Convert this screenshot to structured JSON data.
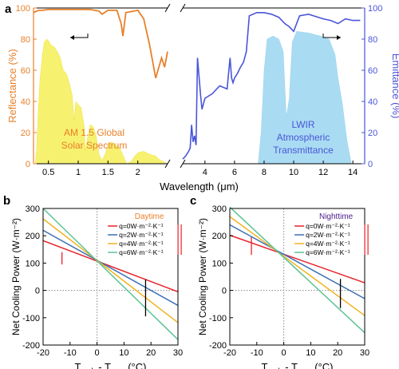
{
  "figure": {
    "panel_labels": [
      "a",
      "b",
      "c"
    ]
  },
  "chart_data": [
    {
      "panel": "a",
      "type": "area",
      "xlabel": "Wavelength (μm)",
      "ylabel_left": "Reflectance (%)",
      "ylabel_right": "Emittance (%)",
      "ylim_left": [
        0,
        100
      ],
      "ylim_right": [
        0,
        100
      ],
      "x_ticks_left": [
        "0.5",
        "1",
        "1.5",
        "2"
      ],
      "x_ticks_right": [
        "4",
        "6",
        "8",
        "10",
        "12",
        "14"
      ],
      "y_ticks": [
        "0",
        "20",
        "40",
        "60",
        "80",
        "100"
      ],
      "annotations": {
        "solar": [
          "AM 1.5 Global",
          "Solar Spectrum"
        ],
        "lwir": [
          "LWIR",
          "Atmospheric",
          "Transmittance"
        ]
      },
      "colors": {
        "reflectance": "#e8802a",
        "emittance": "#4a55d8",
        "solar": "#f7f170",
        "lwir": "#a9dcf3",
        "left_axis": "#e8802a",
        "right_axis": "#4a55d8"
      },
      "series": [
        {
          "role": "reflectance",
          "x": [
            0.25,
            0.3,
            0.35,
            0.4,
            0.5,
            0.6,
            0.8,
            1.0,
            1.2,
            1.35,
            1.4,
            1.5,
            1.65,
            1.72,
            1.75,
            1.8,
            2.0,
            2.1,
            2.2,
            2.3,
            2.4,
            2.45,
            2.5
          ],
          "values": [
            97,
            98,
            98.5,
            98.5,
            99,
            99,
            99,
            99,
            99,
            98,
            96,
            98.5,
            98.5,
            90,
            82,
            97,
            98.5,
            93,
            76,
            55,
            68,
            62,
            72
          ]
        },
        {
          "role": "emittance",
          "x": [
            2.5,
            2.7,
            2.9,
            3.0,
            3.1,
            3.2,
            3.3,
            3.4,
            3.5,
            3.7,
            3.8,
            4.0,
            4.5,
            5.0,
            5.5,
            5.7,
            5.8,
            5.9,
            6.0,
            6.2,
            6.4,
            6.6,
            6.8,
            7.0,
            7.5,
            8.0,
            8.5,
            9.0,
            9.4,
            9.7,
            10.0,
            10.4,
            11.0,
            12.0,
            12.5,
            13.0,
            13.5,
            14.0,
            14.5
          ],
          "values": [
            3,
            5,
            8,
            10,
            25,
            14,
            18,
            12,
            68,
            45,
            35,
            42,
            45,
            50,
            48,
            68,
            55,
            52,
            55,
            58,
            62,
            65,
            72,
            95,
            97,
            97,
            96,
            94,
            90,
            88,
            85,
            95,
            96,
            93,
            92,
            90,
            93,
            92,
            92
          ]
        }
      ]
    },
    {
      "panel": "b",
      "type": "line",
      "xlabel": "T<sub>amb</sub> - T<sub>sam</sub> (°C)",
      "ylabel": "Net Cooling Power (W·m⁻²)",
      "title": "Daytime",
      "title_color": "#e8802a",
      "xlim": [
        -20,
        30
      ],
      "ylim": [
        -200,
        300
      ],
      "x_ticks": [
        "-20",
        "-10",
        "0",
        "10",
        "20",
        "30"
      ],
      "y_ticks": [
        "-200",
        "-100",
        "0",
        "100",
        "200",
        "300"
      ],
      "series": [
        {
          "name": "q=0W·m⁻²·K⁻¹",
          "color": "#e8232b",
          "x": [
            -20,
            30
          ],
          "values": [
            182,
            -5
          ]
        },
        {
          "name": "q=2W·m⁻²·K⁻¹",
          "color": "#3c6fb5",
          "x": [
            -20,
            30
          ],
          "values": [
            220,
            -55
          ]
        },
        {
          "name": "q=4W·m⁻²·K⁻¹",
          "color": "#f0b323",
          "x": [
            -20,
            30
          ],
          "values": [
            262,
            -118
          ]
        },
        {
          "name": "q=6W·m⁻²·K⁻¹",
          "color": "#5cc393",
          "x": [
            -20,
            30
          ],
          "values": [
            300,
            -180
          ]
        }
      ],
      "markers": [
        {
          "x": -13,
          "y_range": [
            95,
            140
          ],
          "color": "#e8232b"
        },
        {
          "x": 18,
          "y_range": [
            -95,
            40
          ],
          "color": "#000000"
        }
      ]
    },
    {
      "panel": "c",
      "type": "line",
      "xlabel": "T<sub>amb</sub> - T<sub>sam</sub> (°C)",
      "ylabel": "Net Cooling Power (W·m⁻²)",
      "title": "Nighttime",
      "title_color": "#4b1a8c",
      "xlim": [
        -20,
        30
      ],
      "ylim": [
        -200,
        300
      ],
      "x_ticks": [
        "-20",
        "-10",
        "0",
        "10",
        "20",
        "30"
      ],
      "y_ticks": [
        "-200",
        "-100",
        "0",
        "100",
        "200",
        "300"
      ],
      "series": [
        {
          "name": "q=0W·m⁻²·K⁻¹",
          "color": "#e8232b",
          "x": [
            -20,
            30
          ],
          "values": [
            202,
            28
          ]
        },
        {
          "name": "q=2W·m⁻²·K⁻¹",
          "color": "#3c6fb5",
          "x": [
            -20,
            30
          ],
          "values": [
            240,
            -30
          ]
        },
        {
          "name": "q=4W·m⁻²·K⁻¹",
          "color": "#f0b323",
          "x": [
            -20,
            30
          ],
          "values": [
            270,
            -92
          ]
        },
        {
          "name": "q=6W·m⁻²·K⁻¹",
          "color": "#5cc393",
          "x": [
            -20,
            30
          ],
          "values": [
            305,
            -155
          ]
        }
      ],
      "markers": [
        {
          "x": -12,
          "y_range": [
            130,
            195
          ],
          "color": "#e8232b"
        },
        {
          "x": 21,
          "y_range": [
            -65,
            42
          ],
          "color": "#000000"
        }
      ]
    }
  ]
}
